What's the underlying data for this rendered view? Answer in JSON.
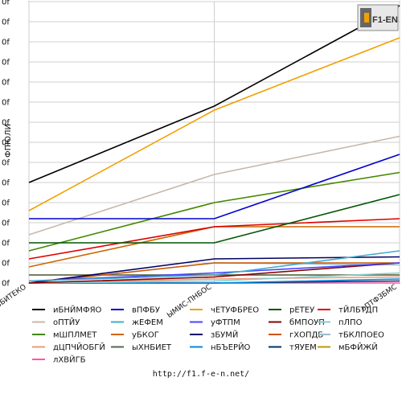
{
  "logo": {
    "text": "F1-EN"
  },
  "footer": {
    "url": "http://f1.f-e-n.net/"
  },
  "chart_data": {
    "type": "line",
    "ylabel": "ФПЮЛИ",
    "ylim": [
      0,
      14
    ],
    "yticks": [
      0,
      1,
      2,
      3,
      4,
      5,
      6,
      7,
      8,
      9,
      10,
      11,
      12,
      13,
      14
    ],
    "ytick_labels": [
      "0f",
      "0f",
      "0f",
      "0f",
      "0f",
      "0f",
      "0f",
      "0f",
      "0f",
      "0f",
      "0f",
      "0f",
      "0f",
      "0f",
      "0f"
    ],
    "categories": [
      "вБИТЕКО",
      "ЫМИС-ПНБОС",
      "оПТФЗБМС"
    ],
    "grid": true,
    "legend_position": "bottom",
    "series": [
      {
        "name": "иБНЙМФЯО",
        "color": "#000000",
        "values": [
          5,
          8.8,
          13.8
        ]
      },
      {
        "name": "вПФБУ",
        "color": "#0000cc",
        "values": [
          3.2,
          3.2,
          6.4
        ]
      },
      {
        "name": "чЕТУФБРЕО",
        "color": "#f0a000",
        "values": [
          3.6,
          8.6,
          12.2
        ]
      },
      {
        "name": "рЕТЕУ",
        "color": "#005500",
        "values": [
          2,
          2,
          4.4
        ]
      },
      {
        "name": "тЙЛБТДП",
        "color": "#dd0000",
        "values": [
          1.2,
          2.8,
          3.2
        ]
      },
      {
        "name": "оПТЙУ",
        "color": "#c8b8a8",
        "values": [
          2.4,
          5.4,
          7.3
        ]
      },
      {
        "name": "жЕФЕМ",
        "color": "#44aacc",
        "values": [
          0.1,
          0.4,
          1.6
        ]
      },
      {
        "name": "уФТПМ",
        "color": "#4444ff",
        "values": [
          0.1,
          0.5,
          1.0
        ]
      },
      {
        "name": "бМПОУП",
        "color": "#880000",
        "values": [
          0,
          0.3,
          1.0
        ]
      },
      {
        "name": "пЛПО",
        "color": "#88cccc",
        "values": [
          0,
          0.1,
          0.5
        ]
      },
      {
        "name": "мШПЛМЕТ",
        "color": "#448800",
        "values": [
          1.6,
          4,
          5.5
        ]
      },
      {
        "name": "уБКОГ",
        "color": "#cc6600",
        "values": [
          0.8,
          2.8,
          2.8
        ]
      },
      {
        "name": "зБУМЙ",
        "color": "#000066",
        "values": [
          0,
          1.2,
          1.3
        ]
      },
      {
        "name": "гХОПДБ",
        "color": "#cc5500",
        "values": [
          0,
          1.0,
          1.0
        ]
      },
      {
        "name": "тБКЛПОЕО",
        "color": "#99bbcc",
        "values": [
          0,
          1.0,
          0.9
        ]
      },
      {
        "name": "дЦПЧЙОБГЙ",
        "color": "#ee9977",
        "values": [
          0,
          0.2,
          0.3
        ]
      },
      {
        "name": "ыХНБИЕТ",
        "color": "#556655",
        "values": [
          0.4,
          0.4,
          0.4
        ]
      },
      {
        "name": "нБЪЕРЙО",
        "color": "#0088dd",
        "values": [
          0,
          0,
          0.2
        ]
      },
      {
        "name": "тЯУЕМ",
        "color": "#003366",
        "values": [
          0,
          0,
          0.1
        ]
      },
      {
        "name": "мБФЙЖЙ",
        "color": "#bb9900",
        "values": [
          0.4,
          0.4,
          0.4
        ]
      },
      {
        "name": "лХВЙГБ",
        "color": "#ff55aa",
        "values": [
          0,
          0,
          0
        ]
      }
    ]
  }
}
